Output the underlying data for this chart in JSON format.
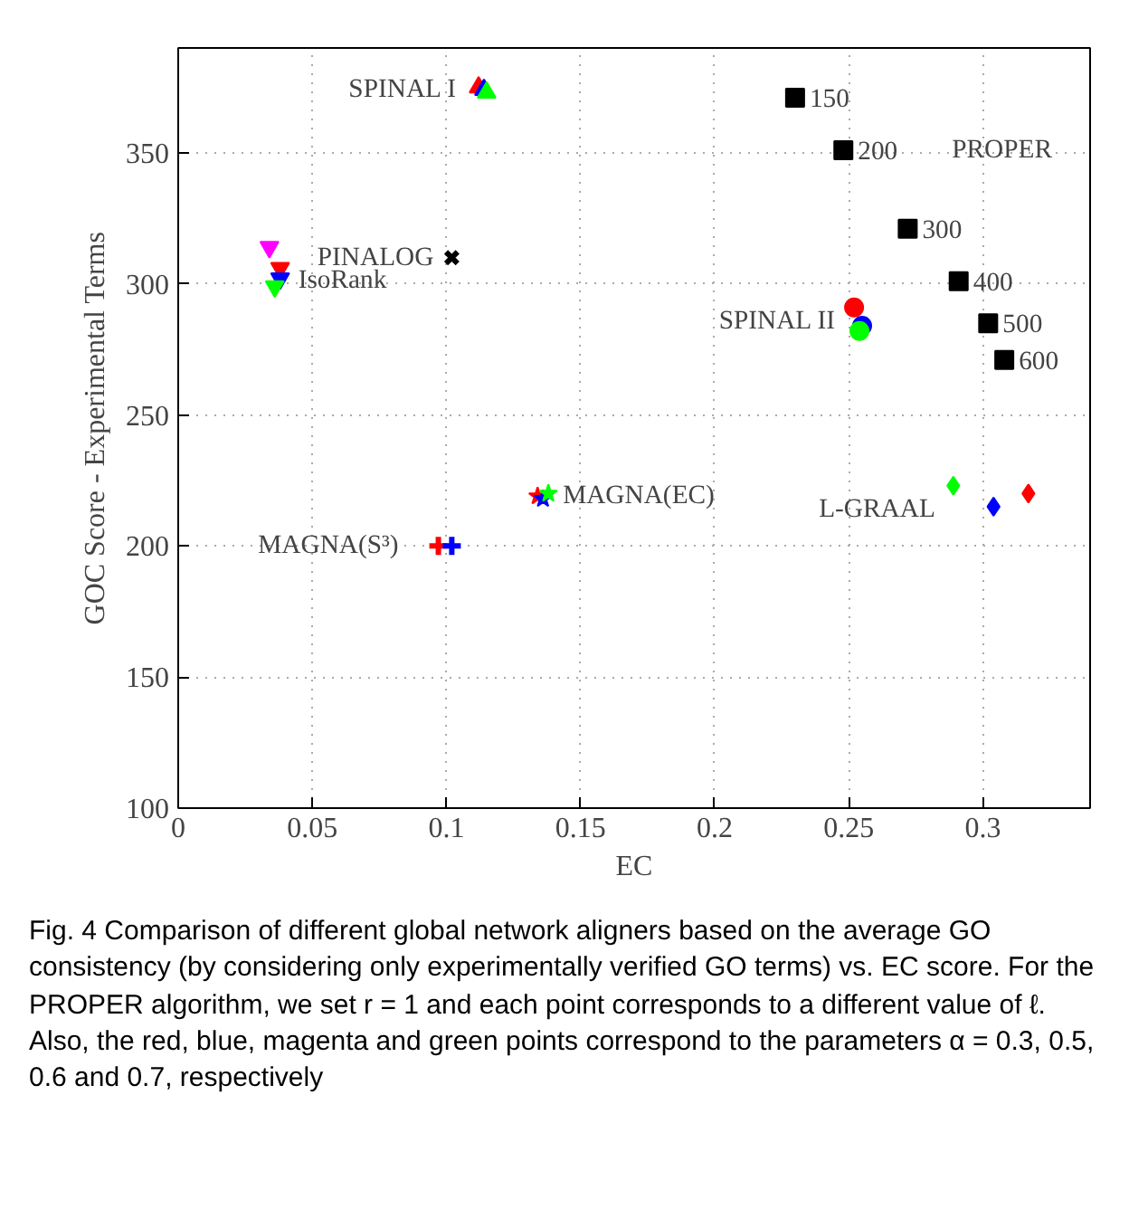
{
  "chart_data": {
    "type": "scatter",
    "xlabel": "EC",
    "ylabel": "GOC Score - Experimental Terms",
    "xlim": [
      0,
      0.34
    ],
    "ylim": [
      100,
      390
    ],
    "xticks": [
      0,
      0.05,
      0.1,
      0.15,
      0.2,
      0.25,
      0.3
    ],
    "yticks": [
      100,
      150,
      200,
      250,
      300,
      350
    ],
    "grid": true,
    "series": [
      {
        "name": "SPINAL I",
        "marker": "triangle",
        "colors": [
          "#ff0000",
          "#0000ff",
          "#00ff00"
        ],
        "x": [
          0.112,
          0.114,
          0.115
        ],
        "values": [
          375,
          374,
          373
        ]
      },
      {
        "name": "IsoRank",
        "marker": "triangle_down",
        "colors": [
          "#ff00ff",
          "#ff0000",
          "#0000ff",
          "#00ff00"
        ],
        "x": [
          0.034,
          0.038,
          0.038,
          0.036
        ],
        "values": [
          314,
          306,
          302,
          299
        ]
      },
      {
        "name": "PINALOG",
        "marker": "x",
        "colors": [
          "#000000"
        ],
        "x": [
          0.102
        ],
        "values": [
          310
        ]
      },
      {
        "name": "MAGNA(EC)",
        "marker": "star",
        "colors": [
          "#ff0000",
          "#0000ff",
          "#00ff00"
        ],
        "x": [
          0.134,
          0.136,
          0.138
        ],
        "values": [
          219,
          218,
          220
        ]
      },
      {
        "name": "MAGNA(S³)",
        "marker": "cross",
        "colors": [
          "#ff0000",
          "#0000ff"
        ],
        "x": [
          0.097,
          0.102
        ],
        "values": [
          200,
          200
        ]
      },
      {
        "name": "PROPER",
        "marker": "square",
        "colors": [
          "#000000",
          "#000000",
          "#000000",
          "#000000",
          "#000000",
          "#000000"
        ],
        "x": [
          0.23,
          0.248,
          0.272,
          0.291,
          0.302,
          0.308
        ],
        "values": [
          371,
          351,
          321,
          301,
          285,
          271
        ]
      },
      {
        "name": "SPINAL II",
        "marker": "circle",
        "colors": [
          "#ff0000",
          "#0000ff",
          "#00ff00"
        ],
        "x": [
          0.252,
          0.255,
          0.254
        ],
        "values": [
          291,
          284,
          282
        ]
      },
      {
        "name": "L-GRAAL",
        "marker": "diamond",
        "colors": [
          "#00ff00",
          "#0000ff",
          "#ff0000"
        ],
        "x": [
          0.289,
          0.304,
          0.317
        ],
        "values": [
          223,
          215,
          220
        ]
      }
    ],
    "annotations": [
      {
        "text": "150",
        "x": 0.23,
        "y": 371
      },
      {
        "text": "200",
        "x": 0.248,
        "y": 351
      },
      {
        "text": "300",
        "x": 0.272,
        "y": 321
      },
      {
        "text": "400",
        "x": 0.291,
        "y": 301
      },
      {
        "text": "500",
        "x": 0.302,
        "y": 285
      },
      {
        "text": "600",
        "x": 0.308,
        "y": 271
      },
      "Fig. 4 Comparison of different global network aligners based on the average GO consistency (by considering only experimentally verified GO terms) vs. EC score. For the PROPER algorithm, we set r = 1 and each point corresponds to a different value of ℓ. Also, the red, blue, magenta and green points correspond to the parameters α = 0.3, 0.5, 0.6 and 0.7, respectively"
    ]
  }
}
